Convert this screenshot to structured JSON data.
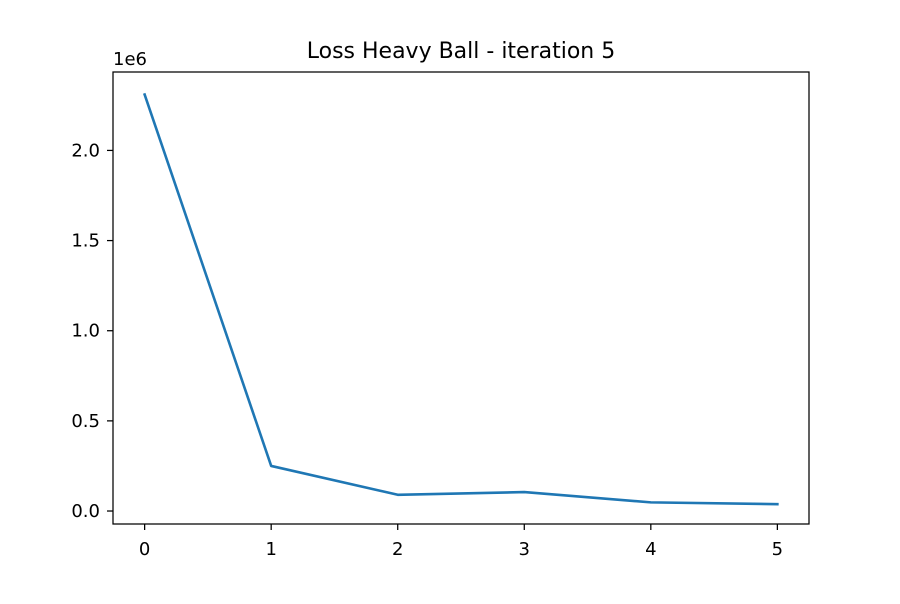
{
  "chart_data": {
    "type": "line",
    "title": "Loss Heavy Ball - iteration 5",
    "xlabel": "",
    "ylabel": "",
    "y_offset_label": "1e6",
    "x": [
      0,
      1,
      2,
      3,
      4,
      5
    ],
    "series": [
      {
        "values": [
          2310000,
          250000,
          90000,
          105000,
          48000,
          38000
        ],
        "color": "#1f77b4"
      }
    ],
    "xlim": [
      -0.25,
      5.25
    ],
    "ylim": [
      -72000,
      2435000
    ],
    "x_ticks": [
      0,
      1,
      2,
      3,
      4,
      5
    ],
    "x_tick_labels": [
      "0",
      "1",
      "2",
      "3",
      "4",
      "5"
    ],
    "y_ticks": [
      0,
      500000,
      1000000,
      1500000,
      2000000
    ],
    "y_tick_labels": [
      "0.0",
      "0.5",
      "1.0",
      "1.5",
      "2.0"
    ],
    "grid": false,
    "legend": "none"
  }
}
